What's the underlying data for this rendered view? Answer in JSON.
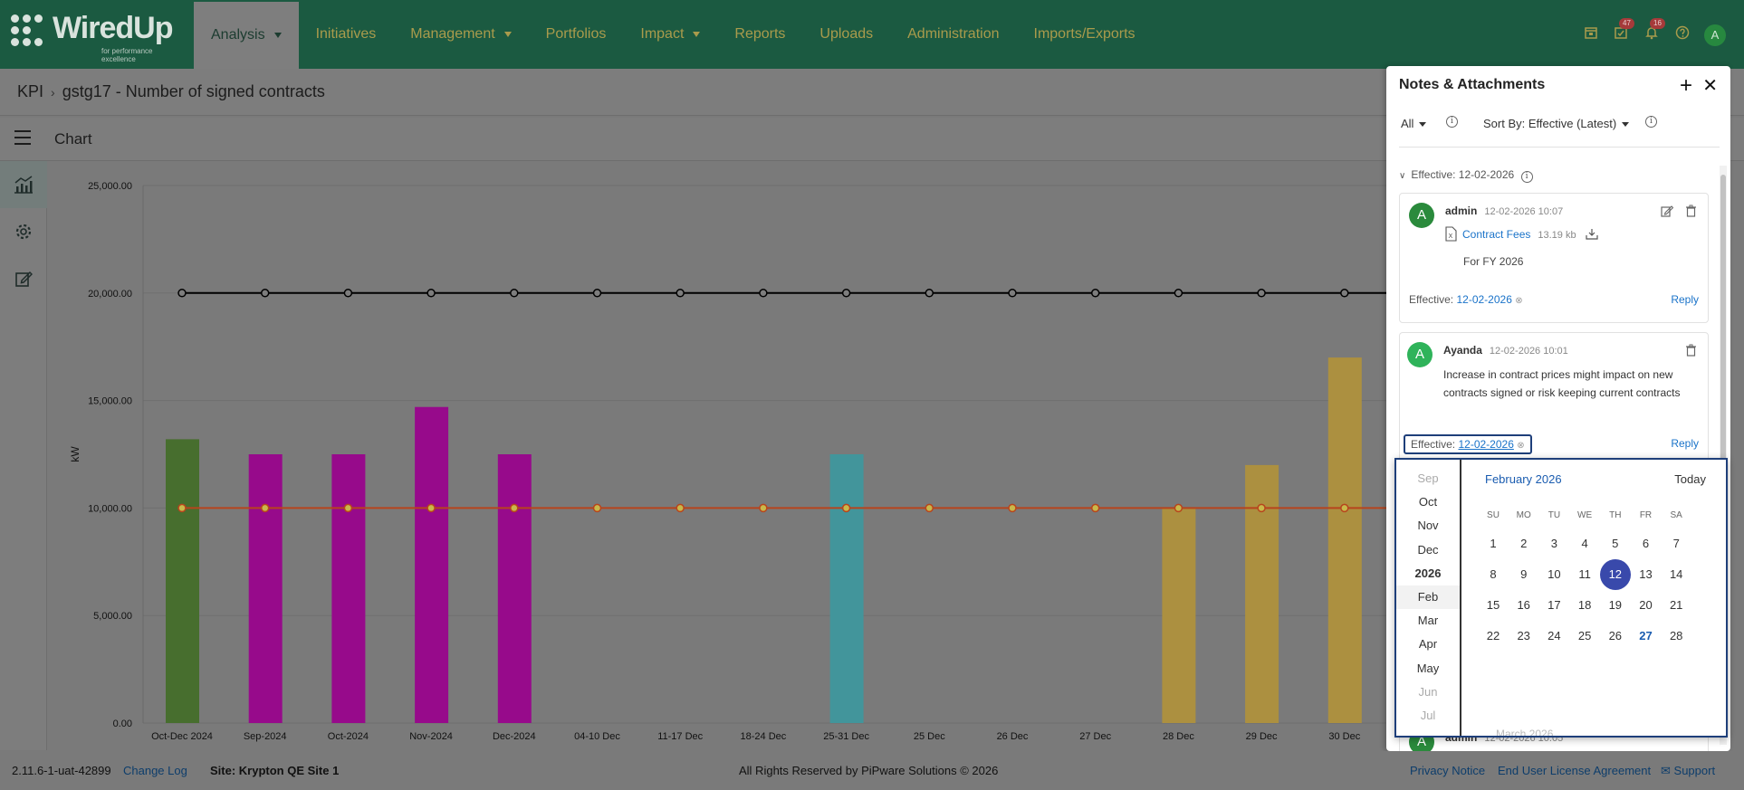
{
  "app": {
    "logo_text": "WiredUp",
    "logo_tagline": "for performance excellence"
  },
  "nav": {
    "items": [
      {
        "label": "Analysis",
        "active": true,
        "dropdown": true
      },
      {
        "label": "Initiatives",
        "active": false,
        "dropdown": false
      },
      {
        "label": "Management",
        "active": false,
        "dropdown": true
      },
      {
        "label": "Portfolios",
        "active": false,
        "dropdown": false
      },
      {
        "label": "Impact",
        "active": false,
        "dropdown": true
      },
      {
        "label": "Reports",
        "active": false,
        "dropdown": false
      },
      {
        "label": "Uploads",
        "active": false,
        "dropdown": false
      },
      {
        "label": "Administration",
        "active": false,
        "dropdown": false
      },
      {
        "label": "Imports/Exports",
        "active": false,
        "dropdown": false
      }
    ],
    "icons": [
      {
        "name": "calendar-icon",
        "badge": ""
      },
      {
        "name": "tasks-icon",
        "badge": "47"
      },
      {
        "name": "bell-icon",
        "badge": "16"
      },
      {
        "name": "help-icon",
        "badge": ""
      }
    ],
    "user_initial": "A"
  },
  "breadcrumb": {
    "root": "KPI",
    "current": "gstg17 - Number of signed contracts"
  },
  "toolbar": {
    "title": "Chart"
  },
  "chart_data": {
    "type": "bar",
    "categories": [
      "Oct-Dec 2024",
      "Sep-2024",
      "Oct-2024",
      "Nov-2024",
      "Dec-2024",
      "04-10 Dec",
      "11-17 Dec",
      "18-24 Dec",
      "25-31 Dec",
      "25 Dec",
      "26 Dec",
      "27 Dec",
      "28 Dec",
      "29 Dec",
      "30 Dec"
    ],
    "values": [
      13200,
      12500,
      12500,
      14700,
      12500,
      null,
      null,
      null,
      12500,
      null,
      null,
      null,
      10000,
      12000,
      17000
    ],
    "bar_colors": [
      "#476e2e",
      "#970a8b",
      "#970a8b",
      "#970a8b",
      "#970a8b",
      "",
      "",
      "",
      "#42959b",
      "",
      "",
      "",
      "#ac9040",
      "#ac9040",
      "#ac9040"
    ],
    "series": [
      {
        "type": "line",
        "color": "#000000",
        "values": [
          20000,
          20000,
          20000,
          20000,
          20000,
          20000,
          20000,
          20000,
          20000,
          20000,
          20000,
          20000,
          20000,
          20000,
          20000
        ]
      },
      {
        "type": "line",
        "color": "#b7441d",
        "values": [
          10000,
          10000,
          10000,
          10000,
          10000,
          10000,
          10000,
          10000,
          10000,
          10000,
          10000,
          10000,
          10000,
          10000,
          10000
        ]
      }
    ],
    "yticks": [
      "25,000.00",
      "20,000.00",
      "15,000.00",
      "10,000.00",
      "5,000.00",
      "0.00"
    ],
    "ylabel": "kW",
    "ylim": [
      0,
      25000
    ]
  },
  "notes_panel": {
    "title": "Notes & Attachments",
    "filter": "All",
    "sort": "Sort By: Effective (Latest)",
    "group": "Effective: 12-02-2026",
    "notes": [
      {
        "author": "admin",
        "time": "12-02-2026 10:07",
        "initial": "A",
        "avatar_color": "#2a8a3c",
        "attachment": "Contract Fees",
        "attachment_size": "13.19 kb",
        "text": "For FY 2026",
        "effective_label": "Effective:",
        "effective_date": "12-02-2026",
        "reply": "Reply"
      },
      {
        "author": "Ayanda",
        "time": "12-02-2026 10:01",
        "initial": "A",
        "avatar_color": "#2fb35a",
        "text": "Increase in contract prices might impact on new contracts signed or risk keeping current contracts",
        "effective_label": "Effective:",
        "effective_date": "12-02-2026",
        "reply": "Reply"
      }
    ],
    "peek_author": "admin",
    "peek_time": "12-02-2026 10:05"
  },
  "datepicker": {
    "month_list": [
      "Sep",
      "Oct",
      "Nov",
      "Dec",
      "2026",
      "Feb",
      "Mar",
      "Apr",
      "May",
      "Jun",
      "Jul"
    ],
    "title": "February 2026",
    "today": "Today",
    "weekdays": [
      "SU",
      "MO",
      "TU",
      "WE",
      "TH",
      "FR",
      "SA"
    ],
    "weeks": [
      [
        "1",
        "2",
        "3",
        "4",
        "5",
        "6",
        "7"
      ],
      [
        "8",
        "9",
        "10",
        "11",
        "12",
        "13",
        "14"
      ],
      [
        "15",
        "16",
        "17",
        "18",
        "19",
        "20",
        "21"
      ],
      [
        "22",
        "23",
        "24",
        "25",
        "26",
        "27",
        "28"
      ]
    ],
    "selected": "12",
    "highlight": "27",
    "next_label": "March 2026"
  },
  "footer": {
    "version": "2.11.6-1-uat-42899",
    "changelog": "Change Log",
    "site": "Site: Krypton QE Site 1",
    "rights": "All Rights Reserved by PiPware Solutions © 2026",
    "privacy": "Privacy Notice",
    "eula": "End User License Agreement",
    "support": "Support"
  }
}
